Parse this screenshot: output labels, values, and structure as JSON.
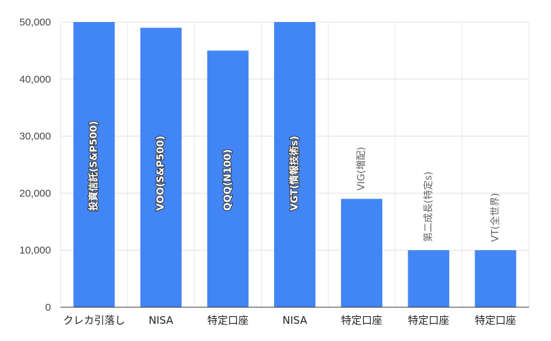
{
  "chart_data": {
    "type": "bar",
    "title": "",
    "xlabel": "",
    "ylabel": "",
    "categories": [
      "クレカ引落し",
      "NISA",
      "特定口座",
      "NISA",
      "特定口座",
      "特定口座",
      "特定口座"
    ],
    "values": [
      50000,
      49000,
      45000,
      50000,
      19000,
      10000,
      10000
    ],
    "data_labels": [
      "投資信託(S&P500)",
      "VOO(S&P500)",
      "QQQ(N100)",
      "VGT(情報技術s)",
      "VIG(増配)",
      "第二成長(特定s)",
      "VT(全世界)"
    ],
    "ylim": [
      0,
      50000
    ],
    "yticks": [
      0,
      10000,
      20000,
      30000,
      40000,
      50000
    ],
    "ytick_labels": [
      "0",
      "10,000",
      "20,000",
      "30,000",
      "40,000",
      "50,000"
    ],
    "grid": true,
    "legend": "none",
    "bar_color": "#4285f4"
  }
}
